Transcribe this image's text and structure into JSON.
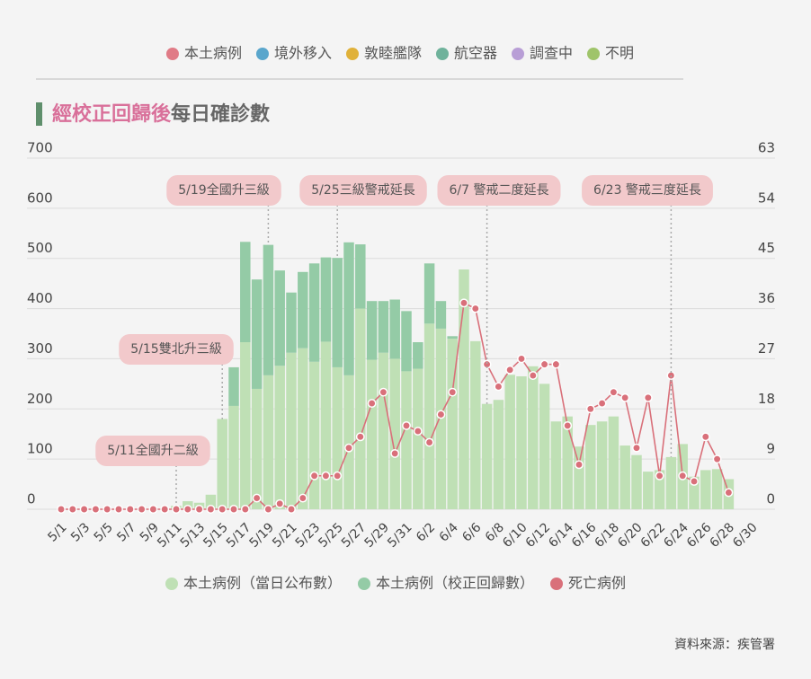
{
  "header": {
    "legend": [
      {
        "name": "本土病例",
        "color": "#e07b86"
      },
      {
        "name": "境外移入",
        "color": "#5aa6cc"
      },
      {
        "name": "敦睦艦隊",
        "color": "#e0b13a"
      },
      {
        "name": "航空器",
        "color": "#6fb29b"
      },
      {
        "name": "調查中",
        "color": "#b89ed6"
      },
      {
        "name": "不明",
        "color": "#9fc46a"
      }
    ],
    "title_highlight": "經校正回歸後",
    "title_rest": "每日確診數"
  },
  "chart_data": {
    "type": "bar",
    "categories": [
      "5/1",
      null,
      "5/3",
      null,
      "5/5",
      null,
      "5/7",
      null,
      "5/9",
      null,
      "5/11",
      null,
      "5/13",
      null,
      "5/15",
      null,
      "5/17",
      null,
      "5/19",
      null,
      "5/21",
      null,
      "5/23",
      null,
      "5/25",
      null,
      "5/27",
      null,
      "5/29",
      null,
      "5/31",
      null,
      "6/2",
      null,
      "6/4",
      null,
      "6/6",
      null,
      "6/8",
      null,
      "6/10",
      null,
      "6/12",
      null,
      "6/14",
      null,
      "6/16",
      null,
      "6/18",
      null,
      "6/20",
      null,
      "6/22",
      null,
      "6/24",
      null,
      "6/26",
      null,
      "6/28",
      null,
      "6/30"
    ],
    "series": [
      {
        "name": "本土病例（當日公布數）",
        "color": "#bfe0b5",
        "values": [
          0,
          0,
          0,
          0,
          0,
          0,
          0,
          0,
          0,
          0,
          7,
          16,
          13,
          29,
          180,
          206,
          333,
          240,
          267,
          286,
          312,
          321,
          294,
          334,
          283,
          267,
          400,
          298,
          312,
          300,
          275,
          280,
          370,
          360,
          340,
          478,
          335,
          210,
          218,
          268,
          265,
          285,
          250,
          175,
          185,
          125,
          168,
          175,
          185,
          127,
          108,
          75,
          78,
          104,
          130,
          65,
          78,
          80,
          60,
          null,
          null
        ]
      },
      {
        "name": "本土病例（校正回歸數）",
        "color": "#94cba6",
        "values": [
          0,
          0,
          0,
          0,
          0,
          0,
          0,
          0,
          0,
          0,
          0,
          0,
          0,
          0,
          0,
          77,
          200,
          218,
          260,
          190,
          120,
          152,
          196,
          168,
          218,
          265,
          128,
          117,
          103,
          118,
          120,
          53,
          120,
          55,
          5,
          0,
          0,
          0,
          0,
          0,
          0,
          0,
          0,
          0,
          0,
          0,
          0,
          0,
          0,
          0,
          0,
          0,
          0,
          0,
          0,
          0,
          0,
          0,
          0,
          null,
          null
        ]
      },
      {
        "name": "死亡病例",
        "color": "#d9707a",
        "axis": "y2",
        "values": [
          0,
          0,
          0,
          0,
          0,
          0,
          0,
          0,
          0,
          0,
          0,
          0,
          0,
          0,
          0,
          0,
          0,
          2,
          0,
          1,
          0,
          2,
          6,
          6,
          6,
          11,
          13,
          19,
          21,
          10,
          15,
          14,
          12,
          17,
          21,
          37,
          36,
          26,
          22,
          25,
          27,
          24,
          26,
          26,
          15,
          8,
          18,
          19,
          21,
          20,
          11,
          20,
          6,
          24,
          6,
          5,
          13,
          9,
          3,
          null,
          null
        ]
      }
    ],
    "ylim": [
      0,
      700
    ],
    "yticks": [
      0,
      100,
      200,
      300,
      400,
      500,
      600,
      700
    ],
    "y2lim": [
      0,
      63
    ],
    "y2ticks": [
      0,
      9,
      18,
      27,
      36,
      45,
      54,
      63
    ],
    "grid": true,
    "annotations": [
      "5/11全國升二級",
      "5/15雙北升三級",
      "5/19全國升三級",
      "5/25三級警戒延長",
      "6/7 警戒二度延長",
      "6/23 警戒三度延長"
    ]
  },
  "footer": {
    "source": "資料來源：疾管署"
  }
}
